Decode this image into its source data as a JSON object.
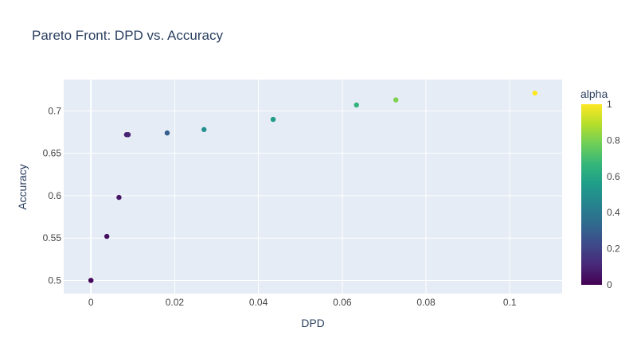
{
  "chart_data": {
    "type": "scatter",
    "title": "Pareto Front: DPD vs. Accuracy",
    "xlabel": "DPD",
    "ylabel": "Accuracy",
    "xlim": [
      -0.0065,
      0.1125
    ],
    "ylim": [
      0.4845,
      0.737
    ],
    "xticks": [
      0,
      0.02,
      0.04,
      0.06,
      0.08,
      0.1
    ],
    "xtick_labels": [
      "0",
      "0.02",
      "0.04",
      "0.06",
      "0.08",
      "0.1"
    ],
    "yticks": [
      0.5,
      0.55,
      0.6,
      0.65,
      0.7
    ],
    "ytick_labels": [
      "0.5",
      "0.55",
      "0.6",
      "0.65",
      "0.7"
    ],
    "grid": true,
    "colorbar": {
      "title": "alpha",
      "colorscale": "Viridis",
      "range": [
        0,
        1
      ],
      "ticks": [
        0,
        0.2,
        0.4,
        0.6,
        0.8,
        1
      ],
      "tick_labels": [
        "0",
        "0.2",
        "0.4",
        "0.6",
        "0.8",
        "1"
      ]
    },
    "points": [
      {
        "x": 0.0,
        "y": 0.5,
        "alpha": 0.0
      },
      {
        "x": 0.0,
        "y": 0.5,
        "alpha": 0.02
      },
      {
        "x": 0.0038,
        "y": 0.552,
        "alpha": 0.04
      },
      {
        "x": 0.0067,
        "y": 0.598,
        "alpha": 0.06
      },
      {
        "x": 0.0085,
        "y": 0.672,
        "alpha": 0.08
      },
      {
        "x": 0.0089,
        "y": 0.672,
        "alpha": 0.1
      },
      {
        "x": 0.0182,
        "y": 0.674,
        "alpha": 0.3
      },
      {
        "x": 0.027,
        "y": 0.678,
        "alpha": 0.5
      },
      {
        "x": 0.0435,
        "y": 0.69,
        "alpha": 0.55
      },
      {
        "x": 0.0634,
        "y": 0.707,
        "alpha": 0.65
      },
      {
        "x": 0.0728,
        "y": 0.713,
        "alpha": 0.8
      },
      {
        "x": 0.106,
        "y": 0.721,
        "alpha": 1.0
      }
    ]
  },
  "colors": {
    "plot_bg": "#e5ecf6",
    "grid": "#ffffff",
    "text": "#2a3f5f",
    "tick_text": "#444444"
  }
}
